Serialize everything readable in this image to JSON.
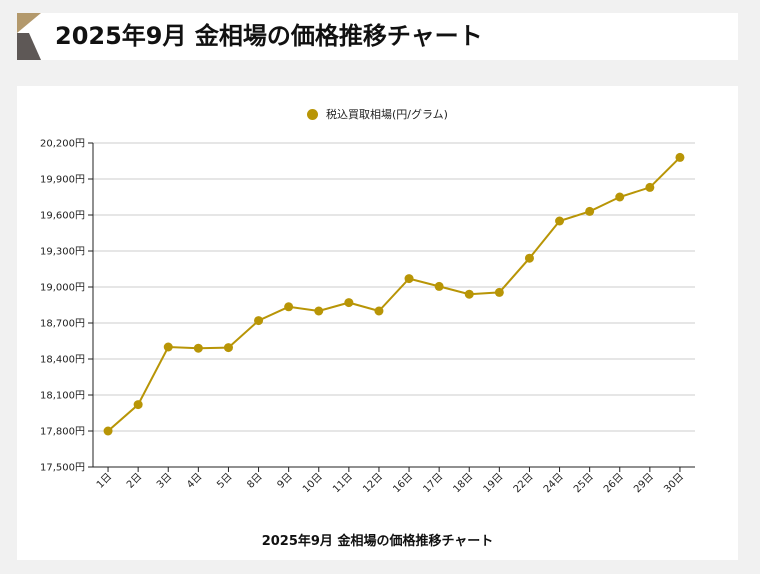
{
  "header": {
    "title": "2025年9月 金相場の価格推移チャート"
  },
  "colors": {
    "accent": "#b89506",
    "logo_top": "#b3996c",
    "logo_bottom": "#5e5856"
  },
  "chart_data": {
    "type": "line",
    "title": "2025年9月 金相場の価格推移チャート",
    "legend_position": "top-center",
    "grid": true,
    "categories": [
      "1日",
      "2日",
      "3日",
      "4日",
      "5日",
      "8日",
      "9日",
      "10日",
      "11日",
      "12日",
      "16日",
      "17日",
      "18日",
      "19日",
      "22日",
      "24日",
      "25日",
      "26日",
      "29日",
      "30日"
    ],
    "y_tick_labels": [
      "17,500円",
      "17,800円",
      "18,100円",
      "18,400円",
      "18,700円",
      "19,000円",
      "19,300円",
      "19,600円",
      "19,900円",
      "20,200円"
    ],
    "ylim": [
      17500,
      20200
    ],
    "series": [
      {
        "name": "税込買取相場(円/グラム)",
        "color": "#b89506",
        "values": [
          17800,
          18020,
          18500,
          18490,
          18495,
          18720,
          18835,
          18800,
          18870,
          18800,
          19070,
          19005,
          18940,
          18955,
          19240,
          19550,
          19630,
          19750,
          19830,
          20080
        ]
      }
    ]
  }
}
